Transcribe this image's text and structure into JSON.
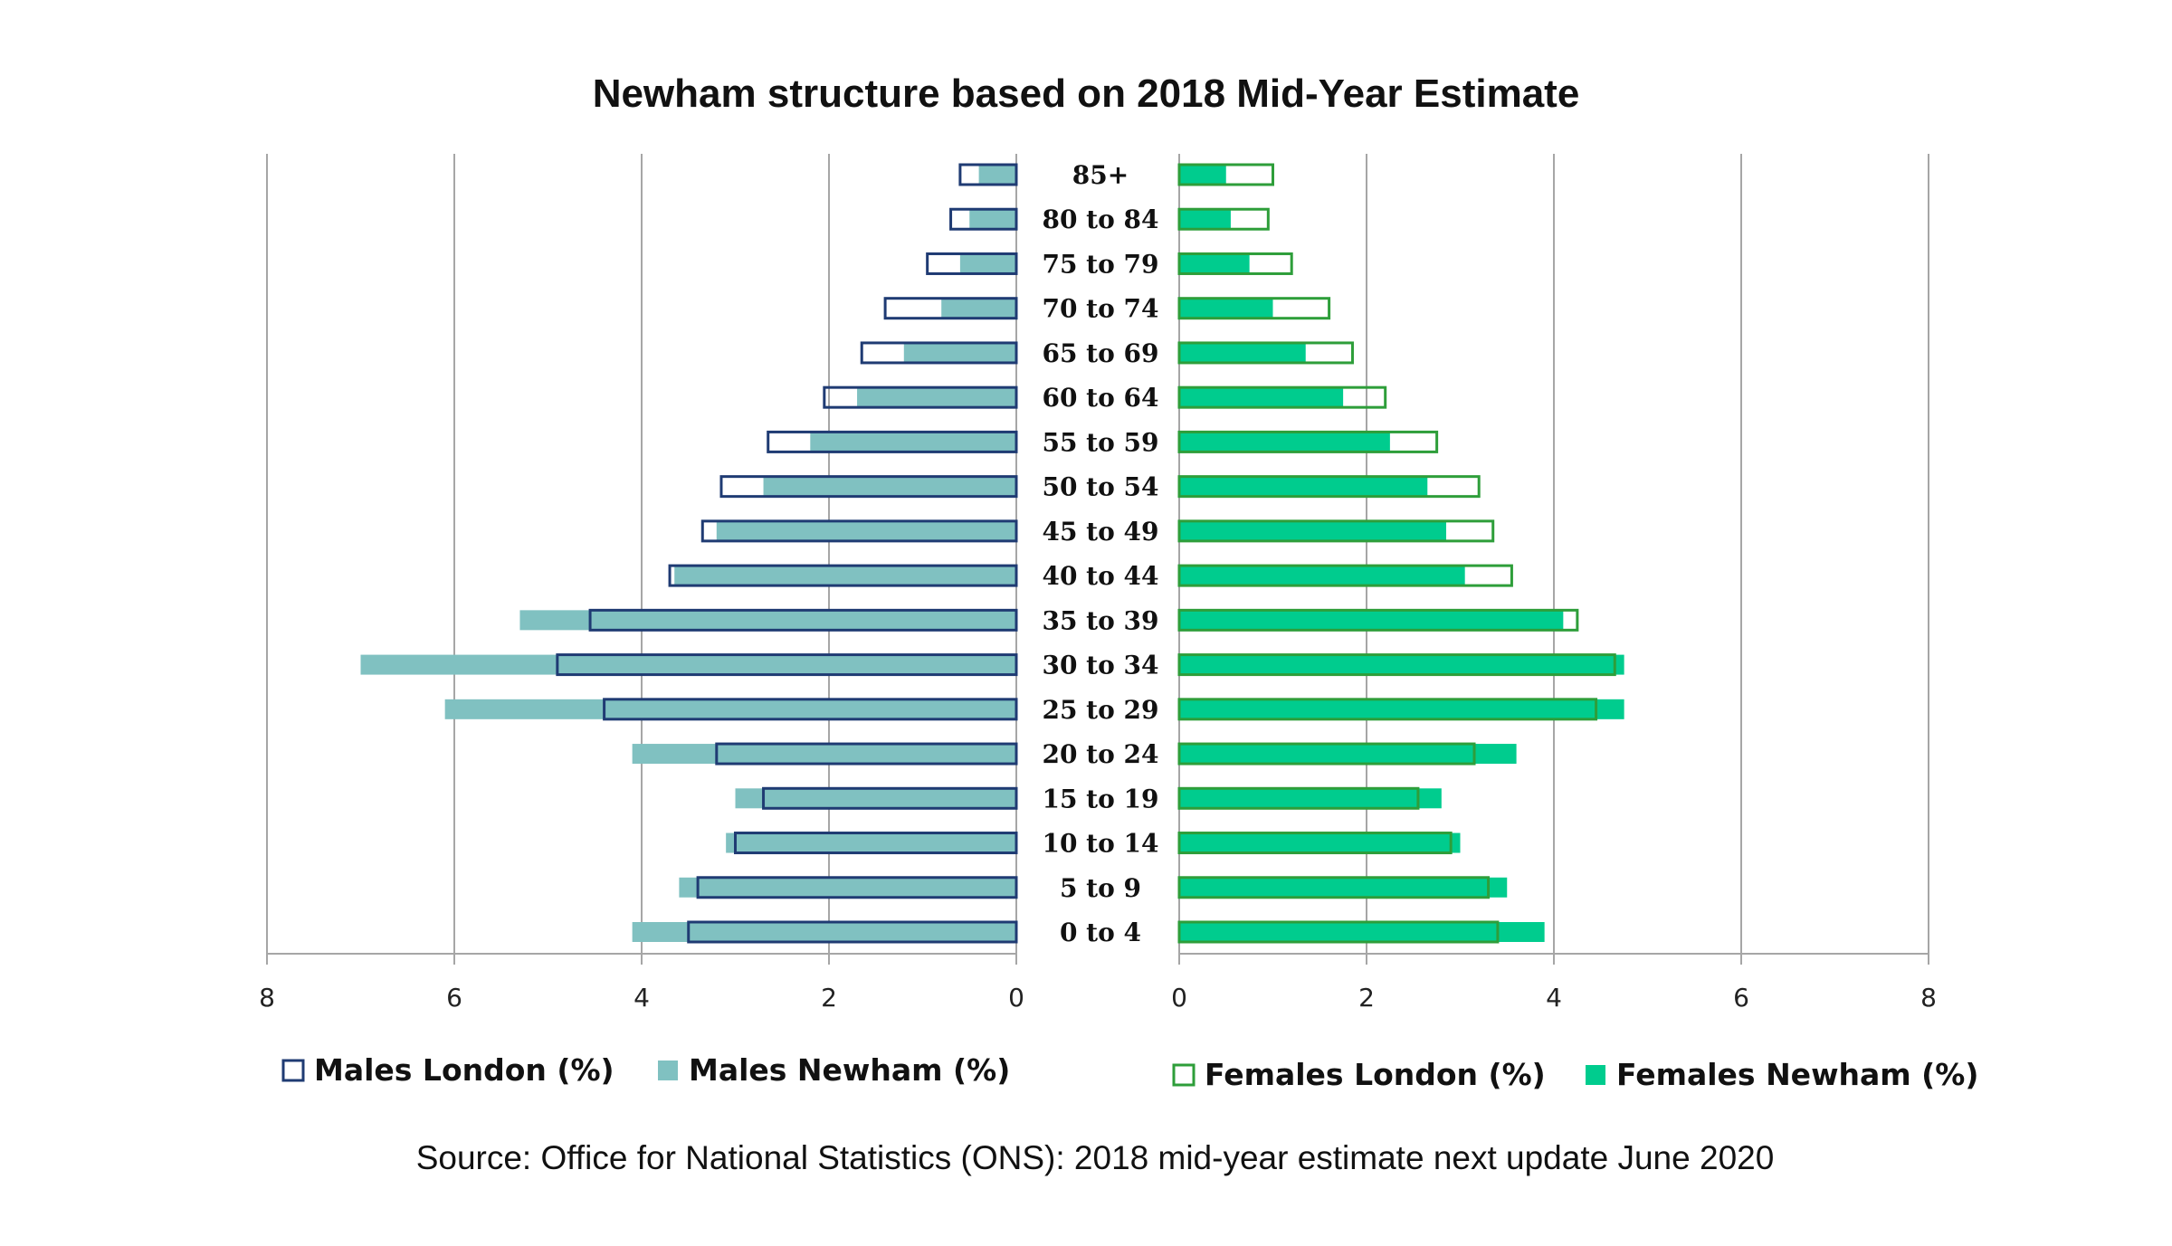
{
  "title": "Newham structure based on 2018 Mid-Year Estimate",
  "source": "Source: Office for National Statistics (ONS): 2018  mid-year estimate  next update June 2020",
  "legend": {
    "males_london": "Males London (%)",
    "males_newham": "Males Newham (%)",
    "females_london": "Females London (%)",
    "females_newham": "Females Newham (%)"
  },
  "colors": {
    "males_london_border": "#1f3b73",
    "males_newham_fill": "#80c1c1",
    "females_london_border": "#2e9e3a",
    "females_newham_fill": "#00cc8e",
    "grid": "#a6a6a6"
  },
  "chart_data": {
    "type": "bar",
    "orientation": "horizontal",
    "layout": "population-pyramid",
    "categories": [
      "0 to 4",
      "5 to 9",
      "10 to 14",
      "15 to 19",
      "20 to 24",
      "25 to 29",
      "30 to 34",
      "35 to 39",
      "40 to 44",
      "45 to 49",
      "50 to 54",
      "55 to 59",
      "60 to 64",
      "65 to 69",
      "70 to 74",
      "75 to 79",
      "80 to 84",
      "85+"
    ],
    "males": {
      "axis_ticks": [
        "8",
        "6",
        "4",
        "2",
        "0"
      ],
      "xlim": [
        0,
        8
      ],
      "direction": "right-to-left",
      "series": [
        {
          "name": "Males London (%)",
          "style": "outline",
          "values": [
            3.5,
            3.4,
            3.0,
            2.7,
            3.2,
            4.4,
            4.9,
            4.55,
            3.7,
            3.35,
            3.15,
            2.65,
            2.05,
            1.65,
            1.4,
            0.95,
            0.7,
            0.6
          ]
        },
        {
          "name": "Males Newham (%)",
          "style": "fill",
          "values": [
            4.1,
            3.6,
            3.1,
            3.0,
            4.1,
            6.1,
            7.0,
            5.3,
            3.65,
            3.2,
            2.7,
            2.2,
            1.7,
            1.2,
            0.8,
            0.6,
            0.5,
            0.4
          ]
        }
      ]
    },
    "females": {
      "axis_ticks": [
        "0",
        "2",
        "4",
        "6",
        "8"
      ],
      "xlim": [
        0,
        8
      ],
      "direction": "left-to-right",
      "series": [
        {
          "name": "Females London (%)",
          "style": "outline",
          "values": [
            3.4,
            3.3,
            2.9,
            2.55,
            3.15,
            4.45,
            4.65,
            4.25,
            3.55,
            3.35,
            3.2,
            2.75,
            2.2,
            1.85,
            1.6,
            1.2,
            0.95,
            1.0
          ]
        },
        {
          "name": "Females Newham (%)",
          "style": "fill",
          "values": [
            3.9,
            3.5,
            3.0,
            2.8,
            3.6,
            4.75,
            4.75,
            4.1,
            3.05,
            2.85,
            2.65,
            2.25,
            1.75,
            1.35,
            1.0,
            0.75,
            0.55,
            0.5
          ]
        }
      ]
    },
    "grid": true,
    "legend_position": "bottom"
  }
}
